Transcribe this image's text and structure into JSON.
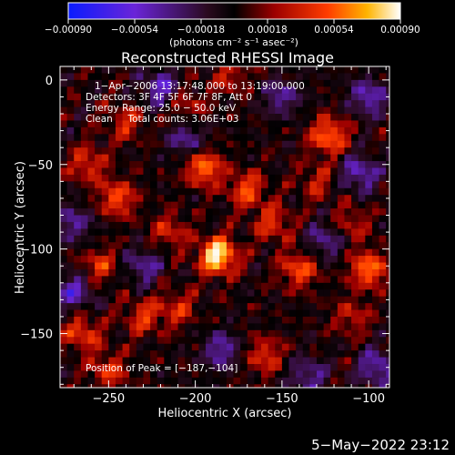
{
  "chart_data": {
    "type": "heatmap",
    "title": "Reconstructed RHESSI Image",
    "xlabel": "Heliocentric X (arcsec)",
    "ylabel": "Heliocentric Y (arcsec)",
    "xlim": [
      -278,
      -88
    ],
    "ylim": [
      -182,
      8
    ],
    "xticks": [
      -250,
      -200,
      -150,
      -100
    ],
    "xtick_labels": [
      "−250",
      "−200",
      "−150",
      "−100"
    ],
    "yticks": [
      0,
      -50,
      -100,
      -150
    ],
    "ytick_labels": [
      "0",
      "−50",
      "−100",
      "−150"
    ],
    "colorbar": {
      "min": -0.0009,
      "max": 0.0009,
      "ticks": [
        -0.0009,
        -0.00054,
        -0.00018,
        0.00018,
        0.00054,
        0.0009
      ],
      "tick_labels": [
        "−0.00090",
        "−0.00054",
        "−0.00018",
        "0.00018",
        "0.00054",
        "0.00090"
      ],
      "units_label": "(photons cm⁻² s⁻¹ asec⁻²)"
    },
    "annotations": [
      "1−Apr−2006 13:17:48.000 to 13:19:00.000",
      "Detectors: 3F 4F 5F 6F 7F 8F, Att 0",
      "Energy Range: 25.0 − 50.0 keV",
      "Clean     Total counts: 3.06E+03"
    ],
    "peak_label": "Position of Peak = [−187,−104]",
    "peak": {
      "x": -187,
      "y": -104
    },
    "bright_sources": [
      {
        "x": -187,
        "y": -104,
        "value": 0.0009
      },
      {
        "x": -123,
        "y": -33,
        "value": 0.0006
      },
      {
        "x": -195,
        "y": -52,
        "value": 0.0006
      },
      {
        "x": -245,
        "y": -70,
        "value": 0.0005
      },
      {
        "x": -100,
        "y": -112,
        "value": 0.0006
      },
      {
        "x": -170,
        "y": -65,
        "value": 0.00048
      },
      {
        "x": -140,
        "y": -112,
        "value": 0.0005
      },
      {
        "x": -262,
        "y": -50,
        "value": 0.0004
      },
      {
        "x": -265,
        "y": -150,
        "value": 0.00045
      },
      {
        "x": -160,
        "y": -163,
        "value": 0.0004
      },
      {
        "x": -230,
        "y": -140,
        "value": 0.0004
      },
      {
        "x": -210,
        "y": -135,
        "value": 0.00035
      },
      {
        "x": -155,
        "y": -85,
        "value": 0.0004
      },
      {
        "x": -110,
        "y": -140,
        "value": 0.0003
      },
      {
        "x": -240,
        "y": -25,
        "value": 0.00035
      },
      {
        "x": -205,
        "y": -15,
        "value": 0.0003
      },
      {
        "x": -180,
        "y": 2,
        "value": 0.0003
      },
      {
        "x": -255,
        "y": -110,
        "value": 0.0004
      },
      {
        "x": -215,
        "y": -90,
        "value": 0.00035
      },
      {
        "x": -250,
        "y": -172,
        "value": 0.0004
      },
      {
        "x": -130,
        "y": -60,
        "value": 0.0003
      },
      {
        "x": -110,
        "y": -85,
        "value": 0.0003
      }
    ],
    "negative_regions": [
      {
        "x": -220,
        "y": -5,
        "value": -0.0005
      },
      {
        "x": -105,
        "y": -55,
        "value": -0.0005
      },
      {
        "x": -270,
        "y": -125,
        "value": -0.0005
      },
      {
        "x": -150,
        "y": -10,
        "value": -0.0004
      },
      {
        "x": -95,
        "y": -170,
        "value": -0.0005
      },
      {
        "x": -185,
        "y": -160,
        "value": -0.00045
      },
      {
        "x": -125,
        "y": -95,
        "value": -0.0004
      },
      {
        "x": -205,
        "y": -35,
        "value": -0.0004
      },
      {
        "x": -100,
        "y": -10,
        "value": -0.0005
      },
      {
        "x": -230,
        "y": -110,
        "value": -0.0004
      },
      {
        "x": -135,
        "y": -175,
        "value": -0.0004
      },
      {
        "x": -270,
        "y": -85,
        "value": -0.0004
      }
    ],
    "grid": false
  },
  "footer": {
    "timestamp": "5−May−2022 23:12"
  }
}
